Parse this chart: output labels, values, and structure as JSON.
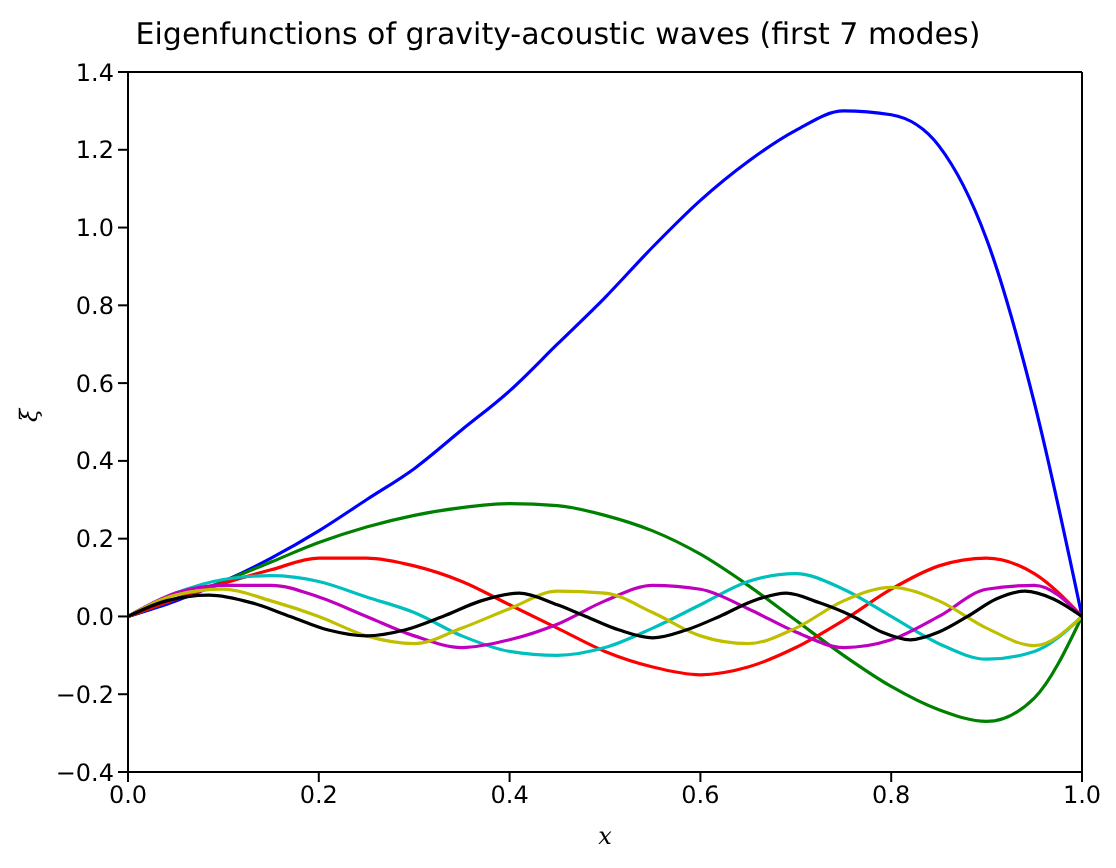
{
  "chart_data": {
    "type": "line",
    "title": "Eigenfunctions of gravity-acoustic waves (first 7 modes)",
    "xlabel": "x",
    "ylabel": "ξ",
    "x": [
      0,
      0.05,
      0.1,
      0.15,
      0.2,
      0.25,
      0.3,
      0.35,
      0.4,
      0.45,
      0.5,
      0.55,
      0.6,
      0.65,
      0.7,
      0.75,
      0.8,
      0.85,
      0.9,
      0.95,
      1
    ],
    "series": [
      {
        "color": "#0000ff",
        "values": [
          0,
          0.04,
          0.09,
          0.15,
          0.22,
          0.3,
          0.38,
          0.48,
          0.58,
          0.7,
          0.82,
          0.95,
          1.07,
          1.17,
          1.25,
          1.3,
          1.29,
          1.21,
          0.97,
          0.55,
          0
        ]
      },
      {
        "color": "#008000",
        "values": [
          0,
          0.045,
          0.09,
          0.14,
          0.19,
          0.23,
          0.26,
          0.28,
          0.29,
          0.285,
          0.26,
          0.22,
          0.16,
          0.08,
          -0.01,
          -0.1,
          -0.18,
          -0.24,
          -0.27,
          -0.21,
          0
        ]
      },
      {
        "color": "#ff0000",
        "values": [
          0,
          0.045,
          0.085,
          0.12,
          0.15,
          0.15,
          0.13,
          0.09,
          0.03,
          -0.03,
          -0.09,
          -0.13,
          -0.15,
          -0.13,
          -0.08,
          -0.01,
          0.07,
          0.13,
          0.15,
          0.11,
          0
        ]
      },
      {
        "color": "#00bfbf",
        "values": [
          0,
          0.06,
          0.095,
          0.105,
          0.09,
          0.05,
          0.01,
          -0.05,
          -0.09,
          -0.1,
          -0.08,
          -0.03,
          0.03,
          0.09,
          0.11,
          0.07,
          0,
          -0.07,
          -0.11,
          -0.09,
          0
        ]
      },
      {
        "color": "#bf00bf",
        "values": [
          0,
          0.06,
          0.08,
          0.08,
          0.05,
          0,
          -0.05,
          -0.08,
          -0.06,
          -0.02,
          0.04,
          0.08,
          0.07,
          0.02,
          -0.04,
          -0.08,
          -0.06,
          0,
          0.07,
          0.08,
          0
        ]
      },
      {
        "color": "#bfbf00",
        "values": [
          0,
          0.055,
          0.07,
          0.04,
          0,
          -0.05,
          -0.07,
          -0.03,
          0.02,
          0.065,
          0.06,
          0.01,
          -0.05,
          -0.07,
          -0.03,
          0.04,
          0.075,
          0.04,
          -0.03,
          -0.075,
          0
        ]
      },
      {
        "color": "#000000",
        "x": [
          0,
          0.04,
          0.085,
          0.13,
          0.17,
          0.21,
          0.25,
          0.29,
          0.33,
          0.37,
          0.41,
          0.45,
          0.48,
          0.515,
          0.55,
          0.585,
          0.62,
          0.655,
          0.69,
          0.725,
          0.76,
          0.79,
          0.82,
          0.85,
          0.88,
          0.91,
          0.94,
          0.97,
          1
        ],
        "values": [
          0,
          0.04,
          0.055,
          0.035,
          0,
          -0.035,
          -0.05,
          -0.035,
          0,
          0.04,
          0.06,
          0.03,
          0,
          -0.035,
          -0.055,
          -0.035,
          0,
          0.04,
          0.06,
          0.035,
          0,
          -0.04,
          -0.06,
          -0.04,
          0,
          0.045,
          0.065,
          0.045,
          0
        ]
      }
    ],
    "xlim": [
      0,
      1
    ],
    "xticks": [
      {
        "value": 0,
        "label": "0.0"
      },
      {
        "value": 0.2,
        "label": "0.2"
      },
      {
        "value": 0.4,
        "label": "0.4"
      },
      {
        "value": 0.6,
        "label": "0.6"
      },
      {
        "value": 0.8,
        "label": "0.8"
      },
      {
        "value": 1,
        "label": "1.0"
      }
    ],
    "ylim": [
      -0.4,
      1.4
    ],
    "yticks": [
      {
        "value": -0.4,
        "label": "−0.4"
      },
      {
        "value": -0.2,
        "label": "−0.2"
      },
      {
        "value": 0,
        "label": "0.0"
      },
      {
        "value": 0.2,
        "label": "0.2"
      },
      {
        "value": 0.4,
        "label": "0.4"
      },
      {
        "value": 0.6,
        "label": "0.6"
      },
      {
        "value": 0.8,
        "label": "0.8"
      },
      {
        "value": 1,
        "label": "1.0"
      },
      {
        "value": 1.2,
        "label": "1.2"
      },
      {
        "value": 1.4,
        "label": "1.4"
      }
    ],
    "marker": "none",
    "line_style": "solid"
  }
}
